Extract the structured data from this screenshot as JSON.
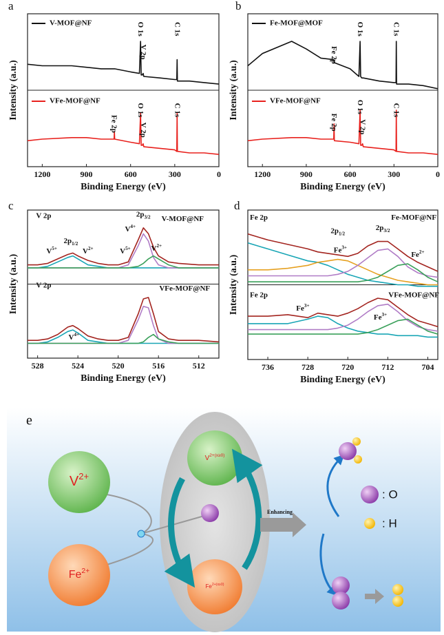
{
  "chart_data": [
    {
      "type": "line",
      "label": "a",
      "xlabel": "Binding Energy (eV)",
      "ylabel": "Intensity (a.u.)",
      "x": [
        1300,
        1200,
        1000,
        900,
        800,
        712,
        710,
        708,
        600,
        540,
        532,
        528,
        520,
        515,
        510,
        400,
        300,
        286,
        284,
        282,
        200,
        100,
        0
      ],
      "xlim": [
        1300,
        0
      ],
      "ylim": [
        0,
        100
      ],
      "xticks": [
        1200,
        900,
        600,
        300,
        0
      ],
      "series": [
        {
          "name": "V-MOF@NF",
          "color": "#111111",
          "values": [
            67,
            66,
            66,
            65,
            64,
            64,
            64,
            64,
            62,
            61,
            82,
            60,
            60,
            61,
            59,
            58,
            57,
            57,
            70,
            56,
            56,
            55,
            54
          ]
        },
        {
          "name": "VFe-MOF@NF",
          "color": "#e8201c",
          "values": [
            17,
            18,
            19,
            19,
            18,
            18,
            23,
            18,
            16,
            15,
            35,
            14,
            14,
            15,
            13,
            12,
            11,
            10,
            35,
            10,
            9,
            9,
            8
          ]
        }
      ],
      "annotations": [
        {
          "text": "O 1s",
          "x": 532,
          "y": 90
        },
        {
          "text": "V 2p",
          "x": 515,
          "y": 75
        },
        {
          "text": "C 1s",
          "x": 284,
          "y": 90
        },
        {
          "text": "Fe 2p",
          "x": 712,
          "y": 28
        },
        {
          "text": "O 1s",
          "x": 532,
          "y": 37
        },
        {
          "text": "V 2p",
          "x": 515,
          "y": 24
        },
        {
          "text": "C 1s",
          "x": 284,
          "y": 37
        }
      ]
    },
    {
      "type": "line",
      "label": "b",
      "xlabel": "Binding Energy (eV)",
      "ylabel": "Intensity (a.u.)",
      "x": [
        1300,
        1200,
        1000,
        900,
        800,
        712,
        710,
        708,
        600,
        540,
        532,
        528,
        520,
        515,
        510,
        400,
        300,
        286,
        284,
        282,
        200,
        100,
        0
      ],
      "xlim": [
        1300,
        0
      ],
      "ylim": [
        0,
        100
      ],
      "xticks": [
        1200,
        900,
        600,
        300,
        0
      ],
      "series": [
        {
          "name": "Fe-MOF@MOF",
          "color": "#111111",
          "values": [
            66,
            74,
            82,
            77,
            71,
            70,
            68,
            68,
            64,
            59,
            82,
            59,
            58,
            58,
            58,
            56,
            55,
            55,
            82,
            54,
            54,
            53,
            51
          ]
        },
        {
          "name": "VFe-MOF@NF",
          "color": "#e8201c",
          "values": [
            17,
            18,
            19,
            19,
            18,
            18,
            28,
            17,
            16,
            15,
            37,
            14,
            14,
            15,
            13,
            12,
            11,
            10,
            37,
            10,
            9,
            9,
            8
          ]
        }
      ],
      "annotations": [
        {
          "text": "Fe 2p",
          "x": 712,
          "y": 73
        },
        {
          "text": "O 1s",
          "x": 532,
          "y": 90
        },
        {
          "text": "C 1s",
          "x": 284,
          "y": 90
        },
        {
          "text": "Fe 2p",
          "x": 712,
          "y": 29
        },
        {
          "text": "O 1s",
          "x": 532,
          "y": 39
        },
        {
          "text": "V 2p",
          "x": 515,
          "y": 26
        },
        {
          "text": "C 1s",
          "x": 284,
          "y": 37
        }
      ]
    },
    {
      "type": "fit",
      "label": "c",
      "xlabel": "Binding Energy (eV)",
      "ylabel": "Intensity (a.u.)",
      "x": [
        529,
        528,
        527,
        526,
        525,
        524.5,
        524,
        523,
        522,
        521,
        520,
        519,
        518,
        517.5,
        517,
        516.5,
        516,
        515,
        514,
        512,
        510
      ],
      "xlim": [
        529,
        510
      ],
      "ylim": [
        0,
        100
      ],
      "xticks": [
        528,
        524,
        520,
        516,
        512
      ],
      "series": [
        {
          "color": "#18a5b5",
          "values": [
            61,
            61,
            62,
            65,
            68,
            69,
            67,
            63,
            62,
            61,
            61,
            61,
            61,
            61,
            61,
            61,
            61,
            61,
            61,
            61,
            61
          ]
        },
        {
          "color": "#b07cc6",
          "values": [
            61,
            61,
            61,
            61,
            61,
            61,
            61,
            61,
            61,
            61,
            61,
            63,
            76,
            84,
            79,
            68,
            63,
            61,
            61,
            61,
            61
          ]
        },
        {
          "color": "#3aa05a",
          "values": [
            61,
            61,
            61,
            61,
            61,
            61,
            61,
            61,
            61,
            61,
            61,
            61,
            62,
            64,
            67,
            69,
            67,
            63,
            61,
            61,
            61
          ]
        },
        {
          "color": "#a3241f",
          "values": [
            63,
            63,
            64,
            67,
            70,
            71,
            69,
            66,
            64,
            63,
            63,
            65,
            80,
            88,
            84,
            75,
            69,
            65,
            64,
            63,
            63
          ]
        },
        {
          "color": "#18a5b5",
          "values": [
            10,
            10,
            11,
            14,
            18,
            19,
            17,
            12,
            11,
            10,
            10,
            10,
            10,
            10,
            10,
            10,
            10,
            10,
            10,
            10,
            10
          ]
        },
        {
          "color": "#b07cc6",
          "values": [
            10,
            10,
            10,
            10,
            10,
            10,
            10,
            10,
            10,
            10,
            10,
            12,
            26,
            35,
            34,
            22,
            13,
            10,
            10,
            10,
            10
          ]
        },
        {
          "color": "#3aa05a",
          "values": [
            10,
            10,
            10,
            10,
            10,
            10,
            10,
            10,
            10,
            10,
            10,
            10,
            10,
            11,
            14,
            16,
            13,
            11,
            10,
            10,
            10
          ]
        },
        {
          "color": "#a3241f",
          "values": [
            12,
            12,
            13,
            16,
            21,
            22,
            20,
            15,
            13,
            12,
            12,
            14,
            30,
            40,
            41,
            30,
            18,
            13,
            12,
            12,
            11
          ]
        }
      ],
      "annotations": [
        {
          "text": "V 2p",
          "x": 527.4,
          "y": 96
        },
        {
          "text": "V-MOF@NF",
          "x": 513.6,
          "y": 94
        },
        {
          "text": "2p",
          "sub": "1/2",
          "x": 524.7,
          "y": 79
        },
        {
          "text": "V",
          "sup": "5+",
          "x": 526.6,
          "y": 72
        },
        {
          "text": "V",
          "sup": "2+",
          "x": 523,
          "y": 72
        },
        {
          "text": "V",
          "sup": "5+",
          "x": 519.3,
          "y": 72
        },
        {
          "text": "V",
          "sup": "4+",
          "x": 518.8,
          "y": 87
        },
        {
          "text": "2p",
          "sub": "3/2",
          "x": 517.5,
          "y": 97
        },
        {
          "text": "V",
          "sup": "2+",
          "x": 516.2,
          "y": 74
        },
        {
          "text": "V 2p",
          "x": 527.4,
          "y": 49
        },
        {
          "text": "VFe-MOF@NF",
          "x": 513.4,
          "y": 47
        },
        {
          "text": "V",
          "sup": "4+",
          "x": 524.4,
          "y": 14
        }
      ]
    },
    {
      "type": "fit",
      "label": "d",
      "xlabel": "Binding Energy (eV)",
      "ylabel": "Intensity (a.u.)",
      "x": [
        740,
        736,
        732,
        728,
        726,
        724,
        722,
        720,
        718,
        716,
        714,
        712,
        710,
        708,
        706,
        704,
        702
      ],
      "xlim": [
        740,
        702
      ],
      "ylim": [
        0,
        100
      ],
      "xticks": [
        736,
        728,
        720,
        712,
        704
      ],
      "series": [
        {
          "color": "#18a5b5",
          "values": [
            78,
            74,
            70,
            66,
            65,
            63,
            60,
            57,
            55,
            53,
            52,
            51,
            50,
            50,
            49,
            49,
            49
          ]
        },
        {
          "color": "#e6a020",
          "values": [
            60,
            60,
            61,
            63,
            65,
            66,
            67,
            66,
            63,
            60,
            57,
            55,
            53,
            52,
            51,
            50,
            50
          ]
        },
        {
          "color": "#b07cc6",
          "values": [
            56,
            56,
            56,
            56,
            56,
            56,
            57,
            59,
            63,
            68,
            73,
            74,
            69,
            62,
            58,
            56,
            55
          ]
        },
        {
          "color": "#3aa05a",
          "values": [
            52,
            52,
            52,
            52,
            52,
            52,
            52,
            52,
            52,
            53,
            55,
            59,
            63,
            64,
            60,
            55,
            52
          ]
        },
        {
          "color": "#a3241f",
          "values": [
            84,
            80,
            77,
            74,
            72,
            71,
            70,
            69,
            71,
            76,
            79,
            79,
            74,
            69,
            65,
            62,
            59
          ]
        },
        {
          "color": "#18a5b5",
          "values": [
            24,
            24,
            24,
            27,
            29,
            28,
            24,
            21,
            19,
            18,
            17,
            17,
            16,
            16,
            16,
            15,
            15
          ]
        },
        {
          "color": "#b07cc6",
          "values": [
            20,
            20,
            20,
            20,
            20,
            20,
            21,
            23,
            27,
            32,
            36,
            37,
            32,
            26,
            22,
            20,
            19
          ]
        },
        {
          "color": "#3aa05a",
          "values": [
            17,
            17,
            17,
            17,
            17,
            17,
            17,
            17,
            17,
            18,
            20,
            23,
            26,
            27,
            23,
            19,
            17
          ]
        },
        {
          "color": "#a3241f",
          "values": [
            29,
            29,
            30,
            28,
            31,
            30,
            29,
            31,
            34,
            38,
            41,
            40,
            35,
            30,
            26,
            24,
            22
          ]
        }
      ],
      "annotations": [
        {
          "text": "Fe 2p",
          "x": 737.8,
          "y": 95
        },
        {
          "text": "Fe-MOF@NF",
          "x": 706.8,
          "y": 95
        },
        {
          "text": "2p",
          "sub": "1/2",
          "x": 722,
          "y": 86
        },
        {
          "text": "2p",
          "sub": "3/2",
          "x": 713,
          "y": 88
        },
        {
          "text": "Fe",
          "sup": "3+",
          "x": 721.5,
          "y": 73
        },
        {
          "text": "Fe",
          "sup": "2+",
          "x": 706,
          "y": 70
        },
        {
          "text": "Fe 2p",
          "x": 737.8,
          "y": 43
        },
        {
          "text": "VFe-MOF@NF",
          "x": 706.8,
          "y": 43
        },
        {
          "text": "Fe",
          "sup": "3+",
          "x": 729,
          "y": 34
        },
        {
          "text": "Fe",
          "sup": "3+",
          "x": 713.5,
          "y": 28
        }
      ]
    }
  ],
  "diagram": {
    "label": "e",
    "left_nodes": [
      {
        "text": "V",
        "sup": "2+"
      },
      {
        "text": "Fe",
        "sup": "2+"
      }
    ],
    "inner_nodes": [
      {
        "text": "V",
        "sup": "2+(x≥0)"
      },
      {
        "text": "Fe",
        "sup": "2+(x≥0)"
      }
    ],
    "arrow_label": "Enhancing",
    "legend": [
      ": O",
      ": H"
    ]
  }
}
